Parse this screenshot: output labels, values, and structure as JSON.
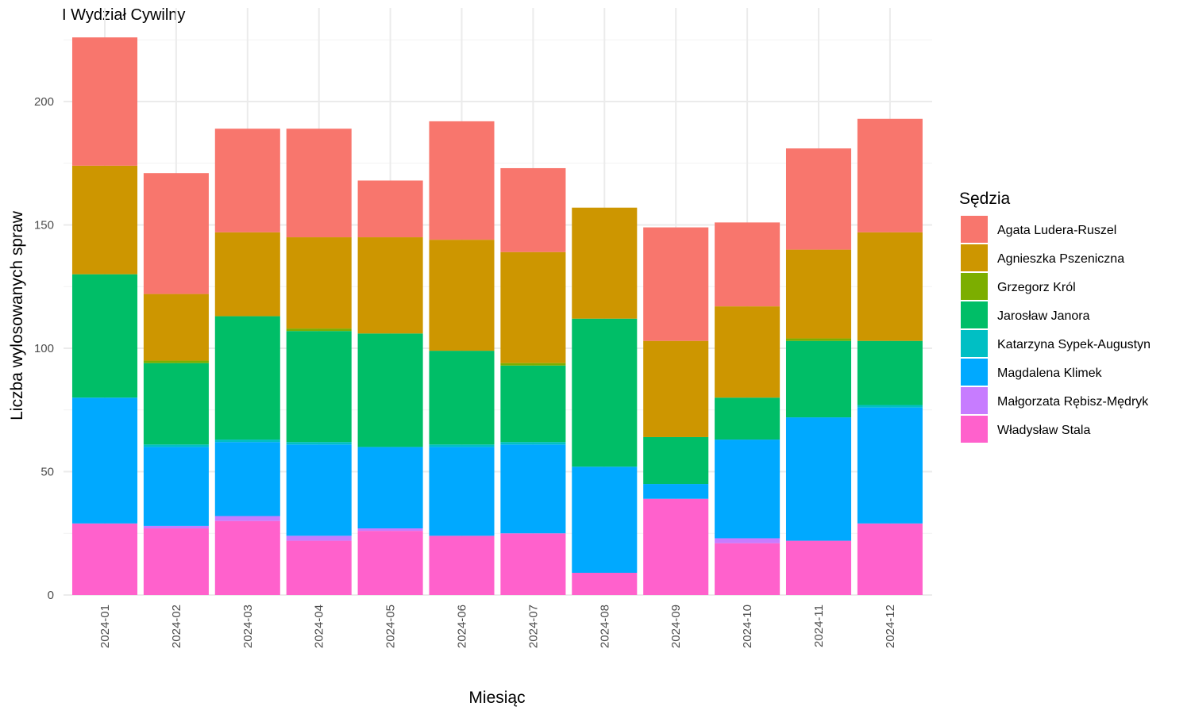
{
  "title": "I Wydział Cywilny",
  "chart_data": {
    "type": "bar",
    "stacked": true,
    "title": "I Wydział Cywilny",
    "xlabel": "Miesiąc",
    "ylabel": "Liczba wylosowanych spraw",
    "ylim": [
      0,
      226
    ],
    "yticks": [
      0,
      50,
      100,
      150,
      200
    ],
    "grid": true,
    "legend_title": "Sędzia",
    "legend_position": "right",
    "categories": [
      "2024-01",
      "2024-02",
      "2024-03",
      "2024-04",
      "2024-05",
      "2024-06",
      "2024-07",
      "2024-08",
      "2024-09",
      "2024-10",
      "2024-11",
      "2024-12"
    ],
    "series": [
      {
        "name": "Agata Ludera-Ruszel",
        "color": "#F8766D",
        "values": [
          52,
          49,
          42,
          44,
          23,
          48,
          34,
          0,
          46,
          34,
          41,
          46
        ]
      },
      {
        "name": "Agnieszka Pszeniczna",
        "color": "#CD9600",
        "values": [
          44,
          27,
          34,
          37,
          39,
          45,
          45,
          45,
          39,
          37,
          36,
          44
        ]
      },
      {
        "name": "Grzegorz Król",
        "color": "#7CAE00",
        "values": [
          0,
          1,
          0,
          1,
          0,
          0,
          1,
          0,
          0,
          0,
          1,
          0
        ]
      },
      {
        "name": "Jarosław Janora",
        "color": "#00BE67",
        "values": [
          50,
          33,
          50,
          45,
          46,
          38,
          31,
          60,
          19,
          17,
          31,
          26
        ]
      },
      {
        "name": "Katarzyna Sypek-Augustyn",
        "color": "#00BFC4",
        "values": [
          0,
          1,
          1,
          1,
          0,
          1,
          1,
          0,
          0,
          0,
          0,
          1
        ]
      },
      {
        "name": "Magdalena Klimek",
        "color": "#00A9FF",
        "values": [
          51,
          32,
          30,
          37,
          33,
          36,
          36,
          43,
          6,
          40,
          50,
          47
        ]
      },
      {
        "name": "Małgorzata Rębisz-Mędryk",
        "color": "#C77CFF",
        "values": [
          0,
          1,
          2,
          2,
          1,
          0,
          0,
          0,
          0,
          2,
          0,
          0
        ]
      },
      {
        "name": "Władysław Stala",
        "color": "#FF61CC",
        "values": [
          29,
          27,
          30,
          22,
          26,
          24,
          25,
          9,
          39,
          21,
          22,
          29
        ]
      }
    ]
  }
}
